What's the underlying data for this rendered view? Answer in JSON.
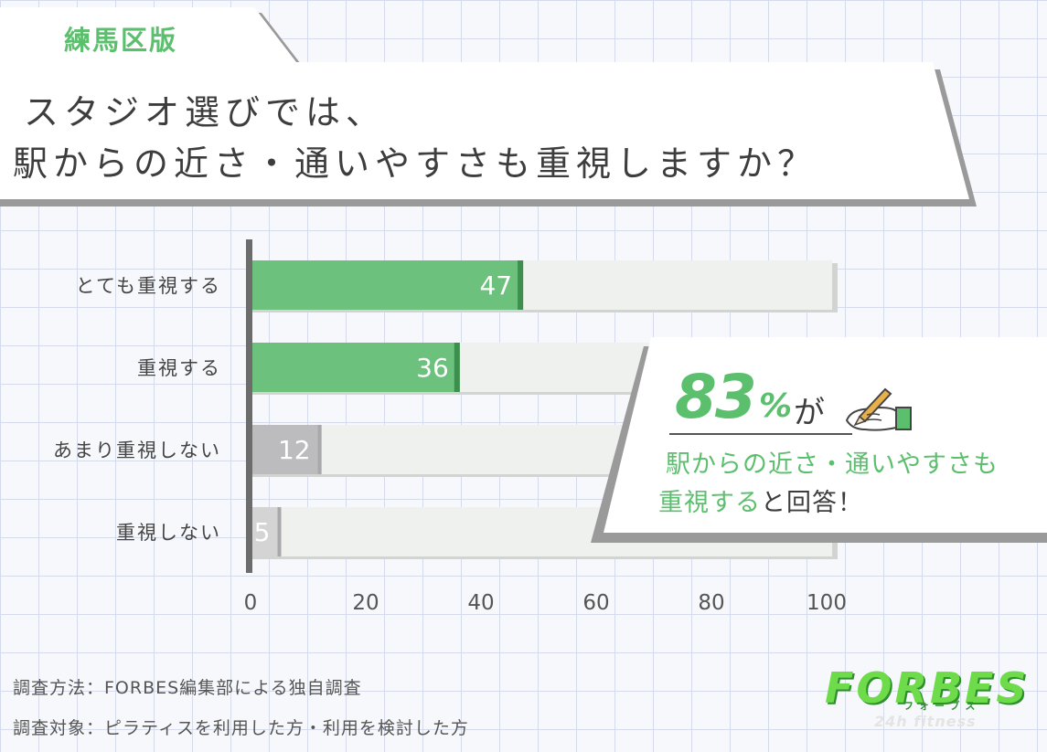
{
  "header": {
    "tab_label": "練馬区版",
    "title_line1": "スタジオ選びでは、",
    "title_line2": "駅からの近さ・通いやすさも重視しますか？"
  },
  "chart_data": {
    "type": "bar",
    "orientation": "horizontal",
    "categories": [
      "とても重視する",
      "重視する",
      "あまり重視しない",
      "重視しない"
    ],
    "values": [
      47,
      36,
      12,
      5
    ],
    "data_labels": [
      "47",
      "36",
      "12",
      "5"
    ],
    "colors": [
      "#6cc17c",
      "#6cc17c",
      "#bcbbbd",
      "#d4d4d4"
    ],
    "track_color": "#eff1ee",
    "accent_color": "#3c8f4c",
    "xlim": [
      0,
      100
    ],
    "xticks": [
      0,
      20,
      40,
      60,
      80,
      100
    ],
    "grid": false,
    "legend": "none"
  },
  "callout": {
    "percent_value": "83",
    "percent_sign": "%",
    "percent_suffix": "が",
    "line1": "駅からの近さ・通いやすさも",
    "line2_green": "重視する",
    "line2_dark": "と回答！",
    "icon": "hand-with-pencil-icon"
  },
  "footer": {
    "method": "調査方法：FORBES編集部による独自調査",
    "target": "調査対象：ピラティスを利用した方・利用を検討した方"
  },
  "logo": {
    "name": "FORBES",
    "kana": "フォーブス",
    "tagline": "24h fitness",
    "color": "#6ddb4a"
  }
}
